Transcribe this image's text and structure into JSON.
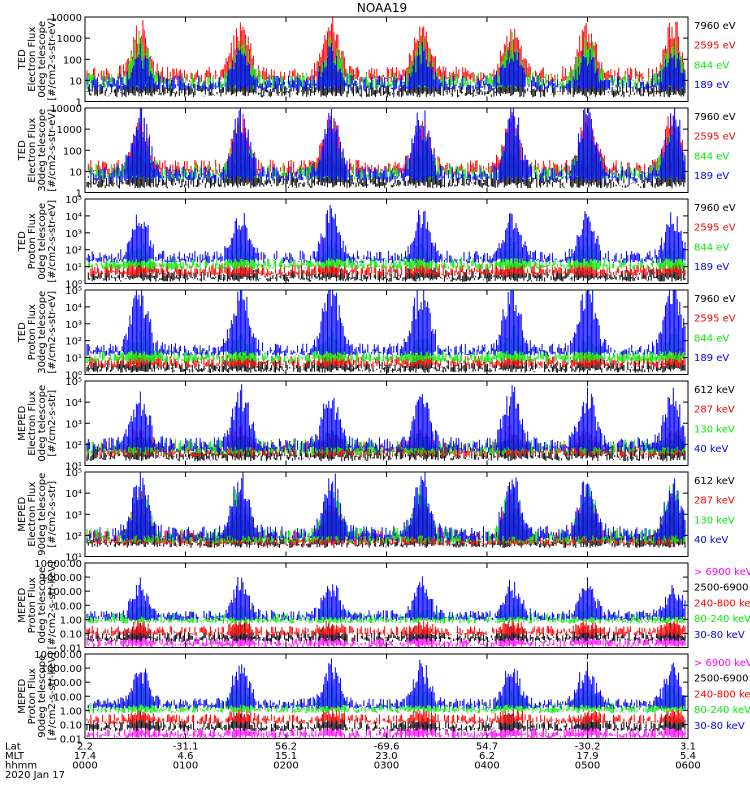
{
  "title": "NOAA19",
  "colors": {
    "black": "#000000",
    "red": "#ff0000",
    "green": "#00ee00",
    "blue": "#0000ff",
    "magenta": "#ff00ff"
  },
  "footer": {
    "row_labels": [
      "Lat",
      "MLT",
      "hhmm",
      "2020 Jan 17"
    ],
    "lat": [
      "2.2",
      "-31.1",
      "56.2",
      "-69.6",
      "54.7",
      "-30.2",
      "3.1"
    ],
    "mlt": [
      "17.4",
      "4.6",
      "15.1",
      "23.0",
      "6.2",
      "17.9",
      "5.4"
    ],
    "hhmm": [
      "0000",
      "0100",
      "0200",
      "0300",
      "0400",
      "0500",
      "0600"
    ]
  },
  "chart_data": [
    {
      "type": "line",
      "ylabel": [
        "TED",
        "Electron Flux",
        "0deg telescope",
        "[#/cm2-s-str-eV]"
      ],
      "yscale": "log",
      "ylim": [
        1,
        10000
      ],
      "yticks": [
        "1",
        "10",
        "100",
        "1000",
        "10000"
      ],
      "series": [
        {
          "name": "7960 eV",
          "color": "black",
          "base": 0.6,
          "peak": 1.9
        },
        {
          "name": "2595 eV",
          "color": "red",
          "base": 1.3,
          "peak": 3.4
        },
        {
          "name": "844 eV",
          "color": "green",
          "base": 1.0,
          "peak": 2.6
        },
        {
          "name": "189 eV",
          "color": "blue",
          "base": 0.9,
          "peak": 2.2
        }
      ]
    },
    {
      "type": "line",
      "ylabel": [
        "TED",
        "Electron Flux",
        "30deg telescope",
        "[#/cm2-s-str-eV]"
      ],
      "yscale": "log",
      "ylim": [
        1,
        10000
      ],
      "yticks": [
        "1",
        "10",
        "100",
        "1000",
        "10000"
      ],
      "series": [
        {
          "name": "7960 eV",
          "color": "black",
          "base": 0.6,
          "peak": 1.9
        },
        {
          "name": "2595 eV",
          "color": "red",
          "base": 1.2,
          "peak": 3.2
        },
        {
          "name": "844 eV",
          "color": "green",
          "base": 1.0,
          "peak": 2.5
        },
        {
          "name": "189 eV",
          "color": "blue",
          "base": 0.9,
          "peak": 3.5
        }
      ]
    },
    {
      "type": "line",
      "ylabel": [
        "TED",
        "Proton Flux",
        "0deg telescope",
        "[#/cm2-s-str-eV]"
      ],
      "yscale": "log",
      "ylim": [
        1,
        100000
      ],
      "yticks": [
        "10⁰",
        "10¹",
        "10²",
        "10³",
        "10⁴",
        "10⁵"
      ],
      "series": [
        {
          "name": "7960 eV",
          "color": "black",
          "base": 0.5,
          "peak": 1.0
        },
        {
          "name": "2595 eV",
          "color": "red",
          "base": 0.8,
          "peak": 1.3
        },
        {
          "name": "844 eV",
          "color": "green",
          "base": 1.2,
          "peak": 2.3
        },
        {
          "name": "189 eV",
          "color": "blue",
          "base": 1.6,
          "peak": 3.8
        }
      ]
    },
    {
      "type": "line",
      "ylabel": [
        "TED",
        "Proton Flux",
        "30deg telescope",
        "[#/cm2-s-str-eV]"
      ],
      "yscale": "log",
      "ylim": [
        1,
        100000
      ],
      "yticks": [
        "10⁰",
        "10¹",
        "10²",
        "10³",
        "10⁴",
        "10⁵"
      ],
      "series": [
        {
          "name": "7960 eV",
          "color": "black",
          "base": 0.5,
          "peak": 1.0
        },
        {
          "name": "2595 eV",
          "color": "red",
          "base": 0.8,
          "peak": 1.3
        },
        {
          "name": "844 eV",
          "color": "green",
          "base": 1.1,
          "peak": 2.4
        },
        {
          "name": "189 eV",
          "color": "blue",
          "base": 1.5,
          "peak": 4.9
        }
      ]
    },
    {
      "type": "line",
      "ylabel": [
        "MEPED",
        "Electron Flux",
        "0deg telescope",
        "[#/cm2-s-str]"
      ],
      "yscale": "log",
      "ylim": [
        10,
        100000
      ],
      "yticks": [
        "10¹",
        "10²",
        "10³",
        "10⁴",
        "10⁵"
      ],
      "series": [
        {
          "name": "612 keV",
          "color": "black",
          "base": 1.6,
          "peak": 2.4
        },
        {
          "name": "287 keV",
          "color": "red",
          "base": 1.8,
          "peak": 2.6
        },
        {
          "name": "130 keV",
          "color": "green",
          "base": 1.9,
          "peak": 2.3
        },
        {
          "name": "40 keV",
          "color": "blue",
          "base": 2.0,
          "peak": 4.2
        }
      ]
    },
    {
      "type": "line",
      "ylabel": [
        "MEPED",
        "Electron Flux",
        "90deg telescope",
        "[#/cm2-s-str]"
      ],
      "yscale": "log",
      "ylim": [
        10,
        100000
      ],
      "yticks": [
        "10¹",
        "10²",
        "10³",
        "10⁴",
        "10⁵"
      ],
      "series": [
        {
          "name": "612 keV",
          "color": "black",
          "base": 1.8,
          "peak": 2.9
        },
        {
          "name": "287 keV",
          "color": "red",
          "base": 1.9,
          "peak": 3.6
        },
        {
          "name": "130 keV",
          "color": "green",
          "base": 2.0,
          "peak": 3.9
        },
        {
          "name": "40 keV",
          "color": "blue",
          "base": 2.1,
          "peak": 4.4
        }
      ]
    },
    {
      "type": "line",
      "ylabel": [
        "MEPED",
        "Proton Flux",
        "0deg telescope",
        "[#/cm2-s-str-keV]"
      ],
      "yscale": "log",
      "ylim": [
        0.01,
        10000
      ],
      "yticks": [
        "0.01",
        "0.10",
        "1.00",
        "10.00",
        "100.00",
        "1000.00",
        "10000.00"
      ],
      "series": [
        {
          "name": "> 6900 keV",
          "color": "magenta",
          "base": -1.6,
          "peak": -1.0
        },
        {
          "name": "2500-6900",
          "color": "black",
          "base": -1.2,
          "peak": -0.6
        },
        {
          "name": "240-800 keV",
          "color": "red",
          "base": -0.8,
          "peak": -0.3
        },
        {
          "name": "80-240 keV",
          "color": "green",
          "base": 0.1,
          "peak": 0.7
        },
        {
          "name": "30-80 keV",
          "color": "blue",
          "base": 0.3,
          "peak": 2.3
        }
      ]
    },
    {
      "type": "line",
      "ylabel": [
        "MEPED",
        "Proton Flux",
        "90deg telescope",
        "[#/cm2-s-str-keV]"
      ],
      "yscale": "log",
      "ylim": [
        0.01,
        10000
      ],
      "yticks": [
        "0.01",
        "0.10",
        "1.00",
        "10.00",
        "100.00",
        "1000.00",
        "10000.00"
      ],
      "series": [
        {
          "name": "> 6900 keV",
          "color": "magenta",
          "base": -1.6,
          "peak": -1.1
        },
        {
          "name": "2500-6900",
          "color": "black",
          "base": -1.1,
          "peak": -0.4
        },
        {
          "name": "240-800 keV",
          "color": "red",
          "base": -0.6,
          "peak": -0.1
        },
        {
          "name": "80-240 keV",
          "color": "green",
          "base": 0.2,
          "peak": 1.6
        },
        {
          "name": "30-80 keV",
          "color": "blue",
          "base": 0.5,
          "peak": 2.9
        }
      ]
    }
  ],
  "time_axis": {
    "start_hhmm": "0000",
    "end_hhmm": "0600",
    "pass_centers_hours": [
      0.55,
      1.55,
      2.45,
      3.35,
      4.25,
      5.0,
      5.85
    ]
  }
}
